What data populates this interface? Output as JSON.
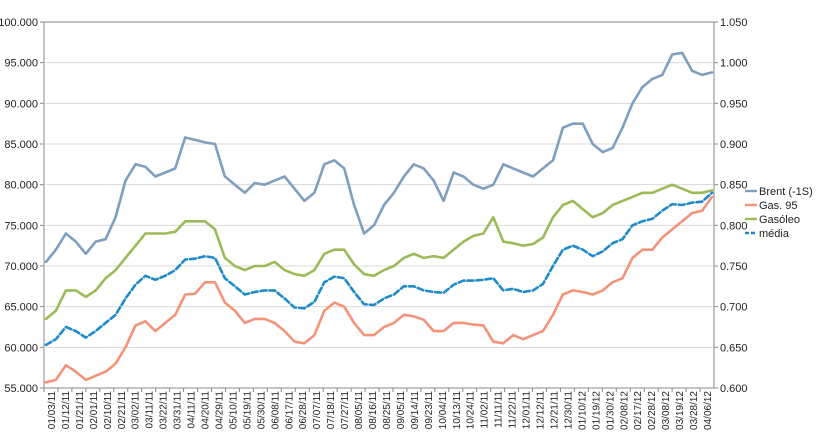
{
  "chart_data": {
    "type": "line",
    "title": "",
    "xlabel": "",
    "ylabel": "",
    "grid": true,
    "legend_placement": "right",
    "x_tick_labels": [
      "01/03/11",
      "01/12/11",
      "01/21/11",
      "02/01/11",
      "02/10/11",
      "02/21/11",
      "03/02/11",
      "03/11/11",
      "03/22/11",
      "03/31/11",
      "04/11/11",
      "04/20/11",
      "04/29/11",
      "05/10/11",
      "05/19/11",
      "05/30/11",
      "06/08/11",
      "06/17/11",
      "06/28/11",
      "07/07/11",
      "07/18/11",
      "07/27/11",
      "08/05/11",
      "08/16/11",
      "08/25/11",
      "09/05/11",
      "09/14/11",
      "09/23/11",
      "10/04/11",
      "10/13/11",
      "10/24/11",
      "11/02/11",
      "11/11/11",
      "11/22/11",
      "12/01/11",
      "12/12/11",
      "12/21/11",
      "12/30/11",
      "01/10/12",
      "01/19/12",
      "01/30/12",
      "02/08/12",
      "02/17/12",
      "02/28/12",
      "03/08/12",
      "03/19/12",
      "03/28/12",
      "04/06/12"
    ],
    "y_left": {
      "min": 55,
      "max": 100,
      "step": 5,
      "tick_labels": [
        "55.000",
        "60.000",
        "65.000",
        "70.000",
        "75.000",
        "80.000",
        "85.000",
        "90.000",
        "95.000",
        "100.000"
      ]
    },
    "y_right": {
      "min": 0.6,
      "max": 1.05,
      "step": 0.05,
      "tick_labels": [
        "0.600",
        "0.650",
        "0.700",
        "0.750",
        "0.800",
        "0.850",
        "0.900",
        "0.950",
        "1.000",
        "1.050"
      ]
    },
    "series": [
      {
        "name": "Brent (-1S)",
        "axis": "left",
        "color": "#7f9fbf",
        "dash": "",
        "values": [
          70.5,
          72,
          74,
          73,
          71.5,
          73,
          73.3,
          76,
          80.5,
          82.5,
          82.2,
          81,
          81.5,
          82,
          85.8,
          85.5,
          85.2,
          85,
          81,
          80,
          79,
          80.2,
          80,
          80.5,
          81,
          79.5,
          78,
          79,
          82.5,
          83,
          82,
          77.5,
          74,
          75,
          77.5,
          79,
          81,
          82.5,
          82,
          80.5,
          78,
          81.5,
          81,
          80,
          79.5,
          80,
          82.5,
          82,
          81.5,
          81,
          82,
          83,
          87,
          87.5,
          87.5,
          85,
          84,
          84.5,
          87,
          90,
          92,
          93,
          93.5,
          96,
          96.2,
          94,
          93.5,
          93.8
        ]
      },
      {
        "name": "Gas. 95",
        "axis": "right",
        "color": "#f4937a",
        "dash": "",
        "values": [
          0.607,
          0.61,
          0.628,
          0.62,
          0.61,
          0.615,
          0.62,
          0.63,
          0.65,
          0.677,
          0.682,
          0.67,
          0.68,
          0.69,
          0.715,
          0.716,
          0.73,
          0.73,
          0.705,
          0.695,
          0.68,
          0.685,
          0.685,
          0.68,
          0.67,
          0.657,
          0.655,
          0.665,
          0.695,
          0.705,
          0.7,
          0.68,
          0.665,
          0.665,
          0.675,
          0.68,
          0.69,
          0.688,
          0.684,
          0.67,
          0.67,
          0.68,
          0.68,
          0.678,
          0.677,
          0.657,
          0.655,
          0.665,
          0.66,
          0.665,
          0.67,
          0.69,
          0.715,
          0.72,
          0.718,
          0.715,
          0.72,
          0.73,
          0.735,
          0.76,
          0.77,
          0.77,
          0.785,
          0.795,
          0.805,
          0.815,
          0.818,
          0.835
        ]
      },
      {
        "name": "Gasóleo",
        "axis": "right",
        "color": "#9bbb59",
        "dash": "",
        "values": [
          0.685,
          0.695,
          0.72,
          0.72,
          0.712,
          0.72,
          0.735,
          0.745,
          0.76,
          0.775,
          0.79,
          0.79,
          0.79,
          0.792,
          0.805,
          0.805,
          0.805,
          0.795,
          0.76,
          0.75,
          0.745,
          0.75,
          0.75,
          0.755,
          0.745,
          0.74,
          0.738,
          0.745,
          0.765,
          0.77,
          0.77,
          0.752,
          0.74,
          0.738,
          0.745,
          0.75,
          0.76,
          0.765,
          0.76,
          0.762,
          0.76,
          0.77,
          0.78,
          0.787,
          0.79,
          0.81,
          0.78,
          0.778,
          0.775,
          0.777,
          0.785,
          0.81,
          0.825,
          0.83,
          0.82,
          0.81,
          0.815,
          0.825,
          0.83,
          0.835,
          0.84,
          0.84,
          0.845,
          0.85,
          0.845,
          0.84,
          0.84,
          0.843
        ]
      },
      {
        "name": "média",
        "axis": "right",
        "color": "#1f8ac9",
        "dash": "6,3",
        "values": [
          0.653,
          0.66,
          0.675,
          0.67,
          0.662,
          0.67,
          0.68,
          0.69,
          0.71,
          0.727,
          0.738,
          0.733,
          0.738,
          0.745,
          0.758,
          0.759,
          0.762,
          0.76,
          0.735,
          0.725,
          0.715,
          0.718,
          0.72,
          0.72,
          0.71,
          0.699,
          0.698,
          0.706,
          0.73,
          0.737,
          0.735,
          0.718,
          0.703,
          0.702,
          0.71,
          0.715,
          0.725,
          0.725,
          0.72,
          0.718,
          0.717,
          0.727,
          0.732,
          0.732,
          0.733,
          0.735,
          0.72,
          0.722,
          0.718,
          0.72,
          0.728,
          0.75,
          0.77,
          0.775,
          0.77,
          0.762,
          0.768,
          0.778,
          0.783,
          0.8,
          0.805,
          0.808,
          0.818,
          0.826,
          0.825,
          0.828,
          0.829,
          0.84
        ]
      }
    ]
  }
}
